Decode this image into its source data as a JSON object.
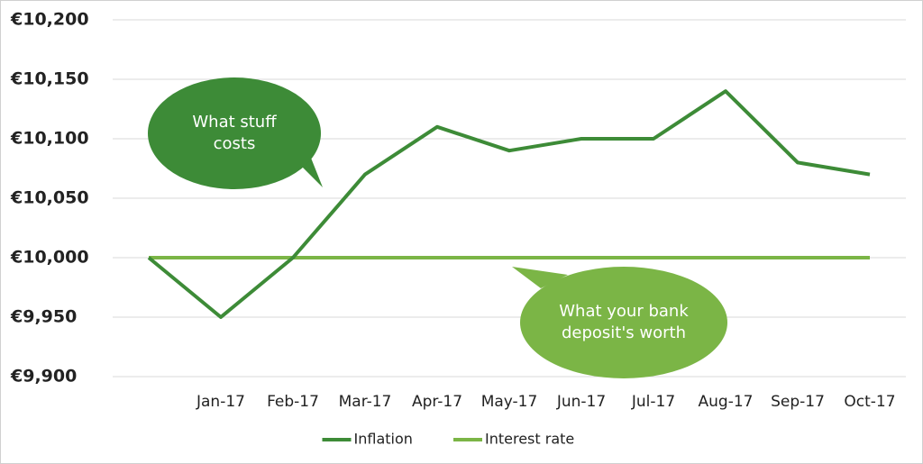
{
  "chart_data": {
    "type": "line",
    "categories": [
      null,
      "Jan-17",
      "Feb-17",
      "Mar-17",
      "Apr-17",
      "May-17",
      "Jun-17",
      "Jul-17",
      "Aug-17",
      "Sep-17",
      "Oct-17"
    ],
    "series": [
      {
        "name": "Inflation",
        "color": "#3d8b37",
        "values": [
          10000,
          9950,
          10000,
          10070,
          10110,
          10090,
          10100,
          10100,
          10140,
          10080,
          10070
        ]
      },
      {
        "name": "Interest rate",
        "color": "#7bb546",
        "values": [
          10000,
          10000,
          10000,
          10000,
          10000,
          10000,
          10000,
          10000,
          10000,
          10000,
          10000
        ]
      }
    ],
    "ylim": [
      9900,
      10200
    ],
    "yticks": [
      {
        "value": 9900,
        "label": "€9,900"
      },
      {
        "value": 9950,
        "label": "€9,950"
      },
      {
        "value": 10000,
        "label": "€10,000"
      },
      {
        "value": 10050,
        "label": "€10,050"
      },
      {
        "value": 10100,
        "label": "€10,100"
      },
      {
        "value": 10150,
        "label": "€10,150"
      },
      {
        "value": 10200,
        "label": "€10,200"
      }
    ],
    "grid": true,
    "legend": "bottom",
    "annotations": [
      {
        "text": "What stuff costs",
        "color": "#3d8b37"
      },
      {
        "text": "What your bank deposit's worth",
        "color": "#7bb546"
      }
    ]
  }
}
